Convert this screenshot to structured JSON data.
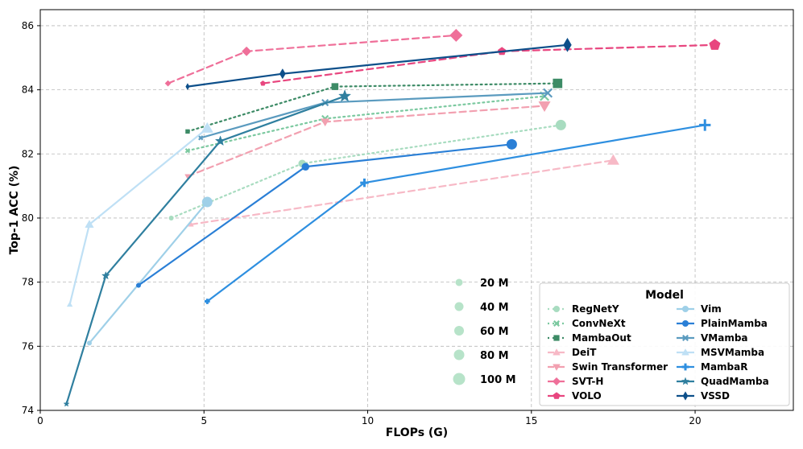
{
  "chart_data": {
    "type": "line",
    "title": "",
    "xlabel": "FLOPs (G)",
    "ylabel": "Top-1 ACC (%)",
    "xlim": [
      0,
      23
    ],
    "ylim": [
      74,
      86.5
    ],
    "xticks": [
      0,
      5,
      10,
      15,
      20
    ],
    "yticks": [
      74,
      76,
      78,
      80,
      82,
      84,
      86
    ],
    "grid": true,
    "legend_title": "Model",
    "legend_position": "bottom-right",
    "size_legend": [
      "20 M",
      "40 M",
      "60 M",
      "80 M",
      "100 M"
    ],
    "series": [
      {
        "name": "RegNetY",
        "color": "#a8dcc0",
        "dash": "2,4",
        "marker": "circle",
        "x": [
          4.0,
          8.0,
          15.9
        ],
        "y": [
          80.0,
          81.7,
          82.9
        ]
      },
      {
        "name": "ConvNeXt",
        "color": "#7cc9a0",
        "dash": "2,4",
        "marker": "x",
        "x": [
          4.5,
          8.7,
          15.4
        ],
        "y": [
          82.1,
          83.1,
          83.8
        ]
      },
      {
        "name": "MambaOut",
        "color": "#3d8b66",
        "dash": "2,4",
        "marker": "square",
        "x": [
          4.5,
          9.0,
          15.8
        ],
        "y": [
          82.7,
          84.1,
          84.2
        ]
      },
      {
        "name": "DeiT",
        "color": "#f7b9c6",
        "dash": "8,5",
        "marker": "triangle-up",
        "x": [
          4.6,
          17.5
        ],
        "y": [
          79.8,
          81.8
        ]
      },
      {
        "name": "Swin Transformer",
        "color": "#f2a0b0",
        "dash": "8,5",
        "marker": "triangle-down",
        "x": [
          4.5,
          8.7,
          15.4
        ],
        "y": [
          81.3,
          83.0,
          83.5
        ]
      },
      {
        "name": "SVT-H",
        "color": "#ef6f99",
        "dash": "8,5",
        "marker": "diamond",
        "x": [
          3.9,
          6.3,
          12.7
        ],
        "y": [
          84.2,
          85.2,
          85.7
        ]
      },
      {
        "name": "VOLO",
        "color": "#e8467f",
        "dash": "8,5",
        "marker": "pentagon",
        "x": [
          6.8,
          14.1,
          20.6
        ],
        "y": [
          84.2,
          85.2,
          85.4
        ]
      },
      {
        "name": "Vim",
        "color": "#9fd0e8",
        "dash": "",
        "marker": "circle",
        "x": [
          1.5,
          5.1
        ],
        "y": [
          76.1,
          80.5
        ]
      },
      {
        "name": "PlainMamba",
        "color": "#2a7fd6",
        "dash": "",
        "marker": "circle",
        "x": [
          3.0,
          8.1,
          14.4
        ],
        "y": [
          77.9,
          81.6,
          82.3
        ]
      },
      {
        "name": "VMamba",
        "color": "#5b9bbf",
        "dash": "",
        "marker": "x",
        "x": [
          4.9,
          8.7,
          15.5
        ],
        "y": [
          82.5,
          83.6,
          83.9
        ]
      },
      {
        "name": "MSVMamba",
        "color": "#bfe0f5",
        "dash": "",
        "marker": "triangle-up",
        "x": [
          0.9,
          1.5,
          5.1
        ],
        "y": [
          77.3,
          79.8,
          82.8
        ]
      },
      {
        "name": "MambaR",
        "color": "#2e8fe0",
        "dash": "",
        "marker": "plus",
        "x": [
          5.1,
          9.9,
          20.3
        ],
        "y": [
          77.4,
          81.1,
          82.9
        ]
      },
      {
        "name": "QuadMamba",
        "color": "#2f7f9f",
        "dash": "",
        "marker": "star",
        "x": [
          0.8,
          2.0,
          5.5,
          9.3
        ],
        "y": [
          74.2,
          78.2,
          82.4,
          83.8
        ]
      },
      {
        "name": "VSSD",
        "color": "#0d4f8a",
        "dash": "",
        "marker": "thin-diamond",
        "x": [
          4.5,
          7.4,
          16.1
        ],
        "y": [
          84.1,
          84.5,
          85.4
        ]
      }
    ]
  }
}
